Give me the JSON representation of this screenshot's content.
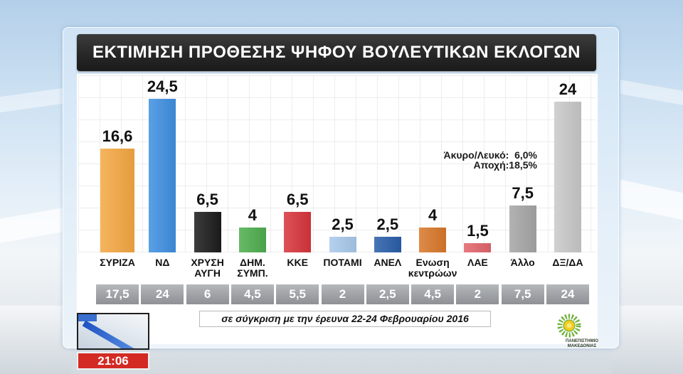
{
  "broadcast": {
    "time": "21:06"
  },
  "logo": {
    "line1": "ΠΑΝΕΠΙΣΤΗΜΙΟ",
    "line2": "ΜΑΚΕΔΟΝΙΑΣ"
  },
  "chart_data": {
    "type": "bar",
    "title": "ΕΚΤΙΜΗΣΗ ΠΡΟΘΕΣΗΣ ΨΗΦΟΥ ΒΟΥΛΕΥΤΙΚΩΝ ΕΚΛΟΓΩΝ",
    "categories": [
      "ΣΥΡΙΖΑ",
      "ΝΔ",
      "ΧΡΥΣΗ ΑΥΓΗ",
      "ΔΗΜ. ΣΥΜΠ.",
      "ΚΚΕ",
      "ΠΟΤΑΜΙ",
      "ΑΝΕΛ",
      "Ενωση κεντρώων",
      "ΛΑΕ",
      "Άλλο",
      "ΔΞ/ΔΑ"
    ],
    "values": [
      16.6,
      24.5,
      6.5,
      4,
      6.5,
      2.5,
      2.5,
      4,
      1.5,
      7.5,
      24
    ],
    "value_labels": [
      "16,6",
      "24,5",
      "6,5",
      "4",
      "6,5",
      "2,5",
      "2,5",
      "4",
      "1,5",
      "7,5",
      "24"
    ],
    "colors": [
      "#f5a843",
      "#3f90e2",
      "#1c1c1c",
      "#4fae4f",
      "#d8343c",
      "#a9c9ec",
      "#2a5ea9",
      "#d9782a",
      "#e2656c",
      "#a6a6a6",
      "#c9c9c9"
    ],
    "ylim": [
      0,
      28
    ],
    "grid": true,
    "annotations": [
      "Άκυρο/Λευκό:  6,0%",
      "Αποχή:18,5%"
    ],
    "comparison": {
      "caption": "σε σύγκριση με την έρευνα 22-24 Φεβρουαρίου 2016",
      "value_labels": [
        "17,5",
        "24",
        "6",
        "4,5",
        "5,5",
        "2",
        "2,5",
        "4,5",
        "2",
        "7,5",
        "24"
      ]
    }
  }
}
